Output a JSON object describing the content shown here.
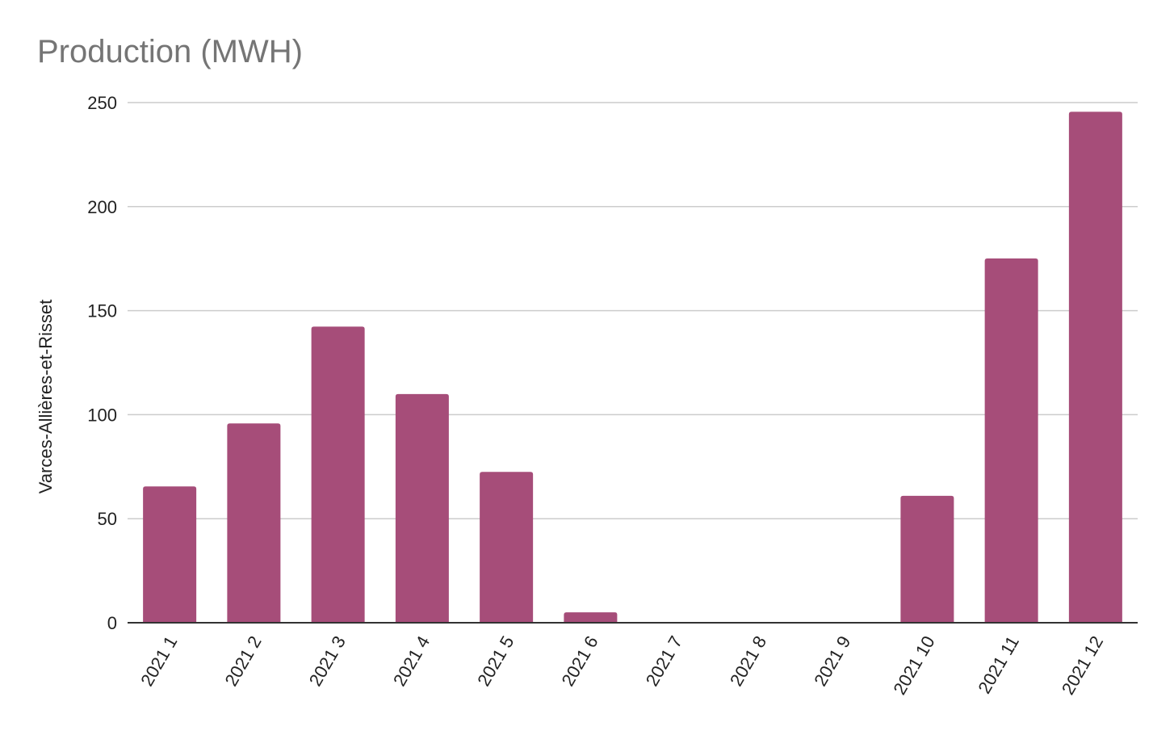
{
  "chart_data": {
    "type": "bar",
    "title": "Production (MWH)",
    "ylabel": "Varces-Allières-et-Risset",
    "xlabel": "",
    "categories": [
      "2021 1",
      "2021 2",
      "2021 3",
      "2021 4",
      "2021 5",
      "2021 6",
      "2021 7",
      "2021 8",
      "2021 9",
      "2021 10",
      "2021 11",
      "2021 12"
    ],
    "values": [
      65.5,
      95.8,
      142.3,
      109.9,
      72.5,
      5,
      0,
      0,
      0,
      61,
      175.1,
      245.6
    ],
    "ylim": [
      0,
      250
    ],
    "yticks": [
      "0",
      "50",
      "100",
      "150",
      "200",
      "250"
    ],
    "grid": true,
    "bar_color": "#a64d79"
  }
}
